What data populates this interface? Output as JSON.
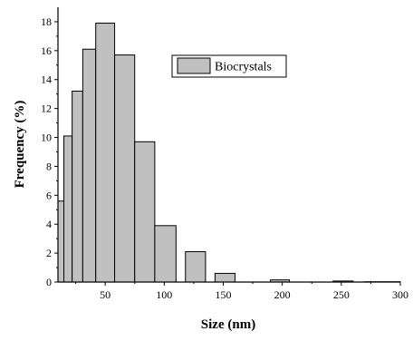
{
  "chart_data": {
    "type": "bar",
    "title": "",
    "xlabel": "Size (nm)",
    "ylabel": "Frequency (%)",
    "xlim": [
      10,
      300
    ],
    "ylim": [
      0,
      19
    ],
    "xticks": [
      "50",
      "100",
      "150",
      "200",
      "250",
      "300"
    ],
    "yticks": [
      "0",
      "2",
      "4",
      "6",
      "8",
      "10",
      "12",
      "14",
      "16",
      "18"
    ],
    "legend": {
      "label": "Biocrystals",
      "placement": "top-right"
    },
    "bar_color": "#c0c0c0",
    "series": [
      {
        "name": "Biocrystals",
        "bins": [
          {
            "start": 10,
            "end": 15,
            "value": 5.6
          },
          {
            "start": 15,
            "end": 22,
            "value": 10.1
          },
          {
            "start": 22,
            "end": 31,
            "value": 13.2
          },
          {
            "start": 31,
            "end": 42,
            "value": 16.1
          },
          {
            "start": 42,
            "end": 58,
            "value": 17.9
          },
          {
            "start": 58,
            "end": 75,
            "value": 15.7
          },
          {
            "start": 75,
            "end": 92,
            "value": 9.7
          },
          {
            "start": 92,
            "end": 110,
            "value": 3.9
          },
          {
            "start": 118,
            "end": 135,
            "value": 2.1
          },
          {
            "start": 143,
            "end": 160,
            "value": 0.6
          },
          {
            "start": 190,
            "end": 206,
            "value": 0.15
          },
          {
            "start": 243,
            "end": 260,
            "value": 0.07
          },
          {
            "start": 270,
            "end": 300,
            "value": 0.02
          }
        ]
      }
    ]
  }
}
